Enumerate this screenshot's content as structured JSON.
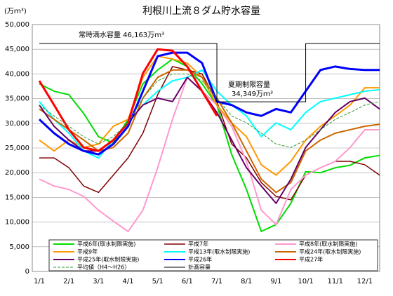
{
  "chart_data": {
    "type": "line",
    "title": "利根川上流８ダム貯水容量",
    "y_unit": "(万ｍ³)",
    "annotations": [
      "常時満水容量 46,163万ｍ³",
      "夏期制限容量",
      "34,349万ｍ³"
    ],
    "categories": [
      "1/1",
      null,
      "2/1",
      null,
      "3/1",
      null,
      "4/1",
      null,
      "5/1",
      null,
      "6/1",
      null,
      "7/1",
      null,
      "8/1",
      null,
      "9/1",
      null,
      "10/1",
      null,
      "11/1",
      null,
      "12/1",
      null
    ],
    "ylim": [
      0,
      50000
    ],
    "yticks": [
      0,
      {
        "value": 5000,
        "label": "5,000"
      },
      {
        "value": 10000,
        "label": "10,000"
      },
      {
        "value": 15000,
        "label": "15,000"
      },
      {
        "value": 20000,
        "label": "20,000"
      },
      {
        "value": 25000,
        "label": "25,000"
      },
      {
        "value": 30000,
        "label": "30,000"
      },
      {
        "value": 35000,
        "label": "35,000"
      },
      {
        "value": 40000,
        "label": "40,000"
      },
      {
        "value": 45000,
        "label": "45,000"
      },
      {
        "value": 50000,
        "label": "50,000"
      }
    ],
    "grid": true,
    "series": [
      {
        "name": "平成6年(取水制限実施)",
        "color": "#00dd00",
        "width": 2,
        "values": [
          38000,
          36500,
          35800,
          32000,
          27300,
          26000,
          30800,
          38000,
          40800,
          43000,
          41500,
          38000,
          33700,
          23700,
          16600,
          8100,
          9500,
          13800,
          20200,
          20000,
          21000,
          21500,
          23000,
          23500
        ]
      },
      {
        "name": "平成7年",
        "color": "#800000",
        "width": 1.5,
        "values": [
          23000,
          23000,
          21000,
          17300,
          16000,
          19500,
          23000,
          28000,
          35800,
          41500,
          40800,
          40000,
          34400,
          25800,
          23000,
          18000,
          15200,
          14500,
          19500,
          21000,
          22300,
          22300,
          21600,
          19500
        ]
      },
      {
        "name": "平成8年(取水制限実施)",
        "color": "#ff99cc",
        "width": 2,
        "values": [
          18700,
          17300,
          16600,
          15200,
          12400,
          10200,
          8100,
          12400,
          21000,
          30800,
          39300,
          36500,
          33700,
          29400,
          22300,
          12400,
          9500,
          16600,
          19500,
          21000,
          22300,
          25100,
          28700,
          28700
        ]
      },
      {
        "name": "平成9年",
        "color": "#ff9900",
        "width": 2,
        "values": [
          26600,
          24400,
          26600,
          25100,
          25800,
          29400,
          30800,
          39300,
          43600,
          43000,
          42200,
          39300,
          33700,
          30100,
          27300,
          21600,
          19500,
          22300,
          26600,
          29400,
          31500,
          33700,
          37200,
          37200
        ]
      },
      {
        "name": "平成13年(取水制限実施)",
        "color": "#00ffff",
        "width": 2,
        "values": [
          34400,
          30800,
          28000,
          24400,
          23000,
          26600,
          30100,
          33700,
          36500,
          38600,
          39300,
          40800,
          36500,
          33700,
          31500,
          27300,
          30100,
          28700,
          32200,
          34400,
          35100,
          35800,
          36500,
          36800
        ]
      },
      {
        "name": "平成24年(取水制限実施)",
        "color": "#cc6600",
        "width": 2,
        "values": [
          32900,
          30800,
          28700,
          26600,
          24400,
          25100,
          28000,
          35100,
          39300,
          40800,
          40800,
          39300,
          35100,
          30100,
          24400,
          18700,
          16000,
          18000,
          24400,
          26600,
          28000,
          28700,
          29400,
          29800
        ]
      },
      {
        "name": "平成25年(取水制限実施)",
        "color": "#660066",
        "width": 2,
        "values": [
          33700,
          29400,
          26600,
          24400,
          24400,
          26600,
          30100,
          33700,
          35100,
          34400,
          39300,
          36500,
          32200,
          26600,
          21000,
          17300,
          13800,
          18700,
          25100,
          28700,
          32200,
          34400,
          35100,
          32900
        ]
      },
      {
        "name": "平成26年",
        "color": "#0000ff",
        "width": 3,
        "values": [
          30800,
          28000,
          25800,
          24400,
          23700,
          25800,
          29400,
          36500,
          43600,
          44300,
          44300,
          42200,
          34400,
          33700,
          32200,
          31500,
          32900,
          32200,
          36500,
          40800,
          41500,
          41000,
          40800,
          40800
        ]
      },
      {
        "name": "平成27年",
        "color": "#ff0000",
        "width": 3,
        "values": [
          38600,
          33700,
          28700,
          25100,
          24400,
          26600,
          30100,
          40100,
          45000,
          44700,
          41500,
          36500,
          31500,
          null,
          null,
          null,
          null,
          null,
          null,
          null,
          null,
          null,
          null,
          null
        ]
      },
      {
        "name": "平均値（H4～H26）",
        "color": "#339933",
        "width": 1,
        "dash": true,
        "values": [
          33700,
          31500,
          29400,
          27300,
          25800,
          27300,
          30100,
          35100,
          38600,
          40000,
          40000,
          38600,
          35100,
          31500,
          30100,
          28000,
          25800,
          25100,
          26600,
          28700,
          30800,
          32200,
          33700,
          34400
        ]
      },
      {
        "name": "計画容量",
        "color": "#000000",
        "width": 1,
        "step": true,
        "values": [
          46163,
          46163,
          46163,
          46163,
          46163,
          46163,
          46163,
          46163,
          46163,
          46163,
          46163,
          46163,
          34349,
          34349,
          34349,
          34349,
          34349,
          34349,
          46163,
          46163,
          46163,
          46163,
          46163,
          46163
        ]
      }
    ]
  }
}
